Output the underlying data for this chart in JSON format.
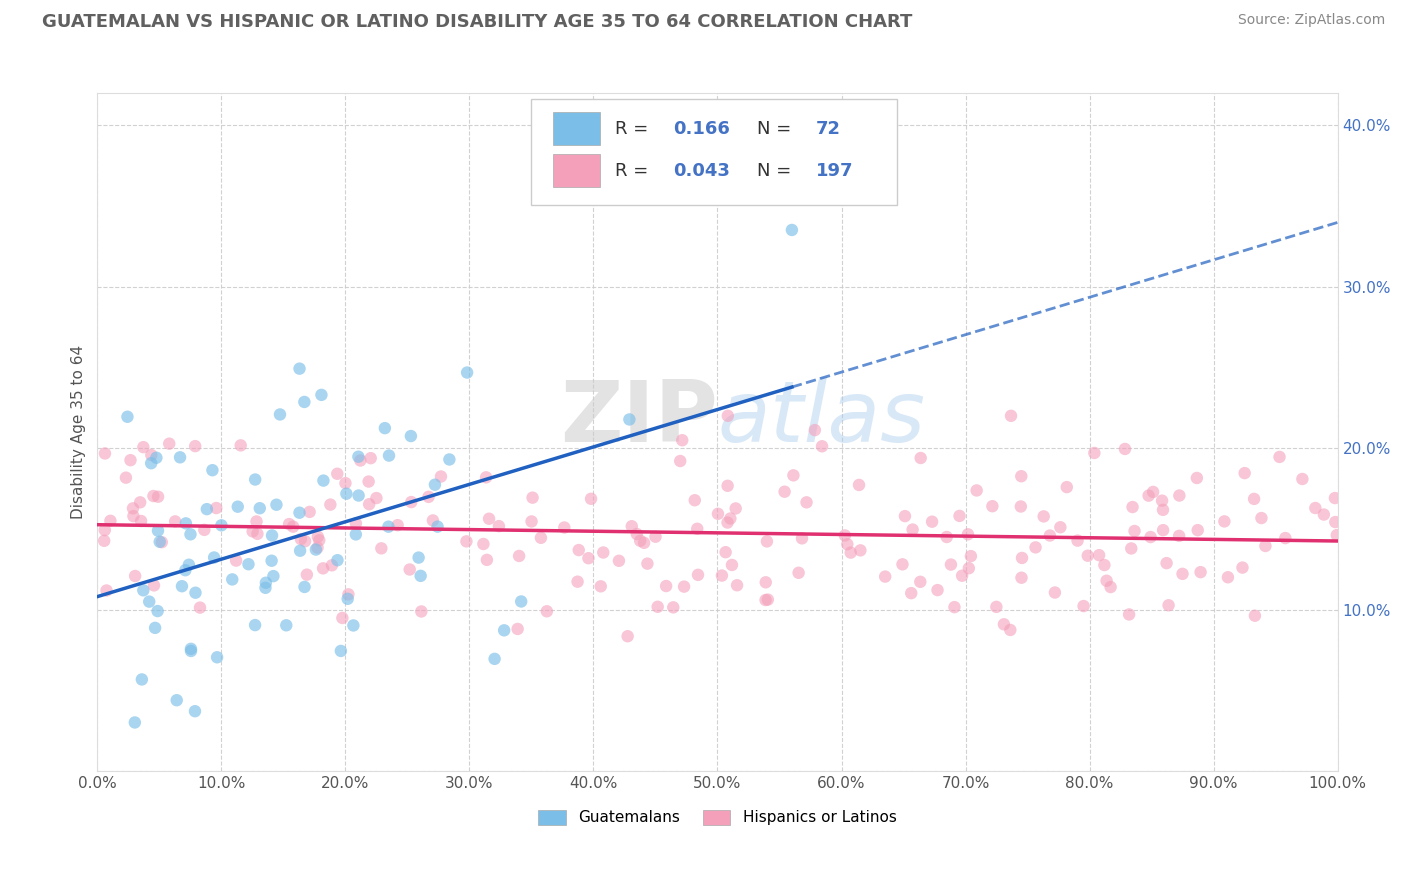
{
  "title": "GUATEMALAN VS HISPANIC OR LATINO DISABILITY AGE 35 TO 64 CORRELATION CHART",
  "source": "Source: ZipAtlas.com",
  "ylabel": "Disability Age 35 to 64",
  "xlim": [
    0,
    1.0
  ],
  "ylim": [
    0,
    0.42
  ],
  "xticks": [
    0.0,
    0.1,
    0.2,
    0.3,
    0.4,
    0.5,
    0.6,
    0.7,
    0.8,
    0.9,
    1.0
  ],
  "yticks": [
    0.0,
    0.1,
    0.2,
    0.3,
    0.4
  ],
  "ytick_labels": [
    "",
    "10.0%",
    "20.0%",
    "30.0%",
    "40.0%"
  ],
  "xtick_labels": [
    "0.0%",
    "10.0%",
    "20.0%",
    "30.0%",
    "40.0%",
    "50.0%",
    "60.0%",
    "70.0%",
    "80.0%",
    "90.0%",
    "100.0%"
  ],
  "blue_color": "#7bbfe8",
  "pink_color": "#f4a0bb",
  "blue_line_color": "#2060c0",
  "pink_line_color": "#e03070",
  "R_blue": 0.166,
  "N_blue": 72,
  "R_pink": 0.043,
  "N_pink": 197,
  "legend_label_blue": "Guatemalans",
  "legend_label_pink": "Hispanics or Latinos",
  "watermark_zip": "ZIP",
  "watermark_atlas": "atlas",
  "background_color": "#ffffff",
  "grid_color": "#cccccc",
  "title_color": "#606060",
  "tick_color": "#4472c4",
  "label_color": "#555555"
}
